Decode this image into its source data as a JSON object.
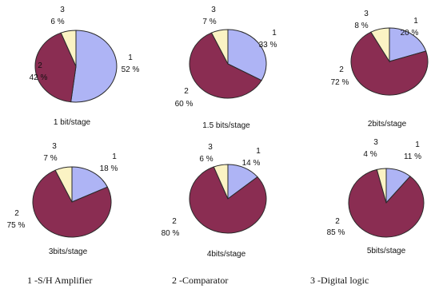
{
  "chart_data": [
    {
      "type": "pie",
      "caption": "1 bit/stage",
      "slices": [
        {
          "label": "1",
          "value": 52,
          "value_text": "52 %"
        },
        {
          "label": "2",
          "value": 42,
          "value_text": "42 %"
        },
        {
          "label": "3",
          "value": 6,
          "value_text": "6 %"
        }
      ]
    },
    {
      "type": "pie",
      "caption": "1.5 bits/stage",
      "slices": [
        {
          "label": "1",
          "value": 33,
          "value_text": "33 %"
        },
        {
          "label": "2",
          "value": 60,
          "value_text": "60 %"
        },
        {
          "label": "3",
          "value": 7,
          "value_text": "7 %"
        }
      ]
    },
    {
      "type": "pie",
      "caption": "2bits/stage",
      "slices": [
        {
          "label": "1",
          "value": 20,
          "value_text": "20 %"
        },
        {
          "label": "2",
          "value": 72,
          "value_text": "72 %"
        },
        {
          "label": "3",
          "value": 8,
          "value_text": "8 %"
        }
      ]
    },
    {
      "type": "pie",
      "caption": "3bits/stage",
      "slices": [
        {
          "label": "1",
          "value": 18,
          "value_text": "18 %"
        },
        {
          "label": "2",
          "value": 75,
          "value_text": "75 %"
        },
        {
          "label": "3",
          "value": 7,
          "value_text": "7 %"
        }
      ]
    },
    {
      "type": "pie",
      "caption": "4bits/stage",
      "slices": [
        {
          "label": "1",
          "value": 14,
          "value_text": "14 %"
        },
        {
          "label": "2",
          "value": 80,
          "value_text": "80 %"
        },
        {
          "label": "3",
          "value": 6,
          "value_text": "6 %"
        }
      ]
    },
    {
      "type": "pie",
      "caption": "5bits/stage",
      "slices": [
        {
          "label": "1",
          "value": 11,
          "value_text": "11 %"
        },
        {
          "label": "2",
          "value": 85,
          "value_text": "85 %"
        },
        {
          "label": "3",
          "value": 4,
          "value_text": "4 %"
        }
      ]
    }
  ],
  "colors": {
    "slice_1": "#aeb4f5",
    "slice_2": "#8a2d52",
    "slice_3": "#fbf3c4",
    "outline": "#2a2a2a"
  },
  "legend": {
    "item1": "1 -S/H Amplifier",
    "item2": "2 -Comparator",
    "item3": "3 -Digital logic"
  }
}
